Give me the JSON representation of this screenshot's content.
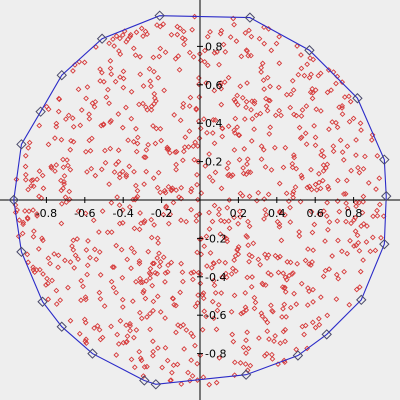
{
  "colors": {
    "background": "#eeeeee",
    "axis": "#000000",
    "points": "#d63a3a",
    "hull_line": "#2b2bc8",
    "hull_vertex": "#4a4a6a"
  },
  "chart_data": {
    "type": "scatter",
    "title": "",
    "xlabel": "",
    "ylabel": "",
    "xlim": [
      -0.97,
      0.97
    ],
    "ylim": [
      -0.97,
      0.97
    ],
    "grid": false,
    "x_ticks": [
      "-0.8",
      "-0.6",
      "-0.4",
      "-0.2",
      "0.2",
      "0.4",
      "0.6",
      "0.8"
    ],
    "y_ticks": [
      "0.8",
      "0.6",
      "0.4",
      "0.2",
      "-0.2",
      "-0.4",
      "-0.6",
      "-0.8"
    ],
    "x_tick_values": [
      -0.8,
      -0.6,
      -0.4,
      -0.2,
      0.2,
      0.4,
      0.6,
      0.8
    ],
    "y_tick_values": [
      0.8,
      0.6,
      0.4,
      0.2,
      -0.2,
      -0.4,
      -0.6,
      -0.8
    ],
    "series": [
      {
        "marker": "diamond",
        "point_count": 1000,
        "distribution": "uniform within unit disc",
        "sample_points": [
          [
            -0.52,
            0.62
          ],
          [
            0.31,
            0.84
          ],
          [
            0.72,
            -0.41
          ],
          [
            -0.18,
            -0.77
          ],
          [
            0.05,
            0.12
          ],
          [
            -0.66,
            -0.21
          ]
        ]
      },
      {
        "marker": "diamond-large",
        "line": "closed polygon (convex hull)",
        "points": [
          [
            -0.97,
            0.0
          ],
          [
            -0.93,
            0.29
          ],
          [
            -0.83,
            0.46
          ],
          [
            -0.72,
            0.65
          ],
          [
            -0.51,
            0.84
          ],
          [
            -0.21,
            0.96
          ],
          [
            0.26,
            0.95
          ],
          [
            0.57,
            0.78
          ],
          [
            0.82,
            0.53
          ],
          [
            0.96,
            0.21
          ],
          [
            0.97,
            0.02
          ],
          [
            0.96,
            -0.23
          ],
          [
            0.84,
            -0.52
          ],
          [
            0.66,
            -0.7
          ],
          [
            0.51,
            -0.81
          ],
          [
            0.24,
            -0.91
          ],
          [
            -0.23,
            -0.96
          ],
          [
            -0.29,
            -0.94
          ],
          [
            -0.56,
            -0.8
          ],
          [
            -0.72,
            -0.66
          ],
          [
            -0.82,
            -0.53
          ],
          [
            -0.93,
            -0.27
          ]
        ]
      }
    ]
  }
}
